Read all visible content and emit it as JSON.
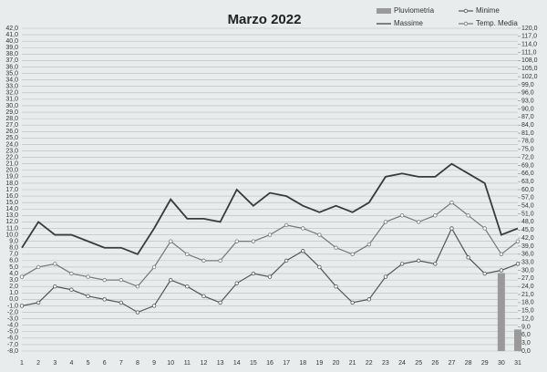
{
  "chart_data": {
    "type": "combo",
    "title": "Marzo 2022",
    "categories": [
      "1",
      "2",
      "3",
      "4",
      "5",
      "6",
      "7",
      "8",
      "9",
      "10",
      "11",
      "12",
      "13",
      "14",
      "15",
      "16",
      "17",
      "18",
      "19",
      "20",
      "21",
      "22",
      "23",
      "24",
      "25",
      "26",
      "27",
      "28",
      "29",
      "30",
      "31"
    ],
    "series": [
      {
        "name": "Pluviometria",
        "type": "bar",
        "axis": "y2",
        "color": "#9a9a9a",
        "values": [
          0,
          0,
          0,
          0,
          0,
          0,
          0,
          0,
          0,
          0,
          0,
          0,
          0,
          0,
          0,
          0,
          0,
          0,
          0,
          0,
          0,
          0,
          0,
          0,
          0,
          0,
          0,
          0,
          0,
          29,
          8
        ]
      },
      {
        "name": "Minime",
        "type": "line",
        "color": "#555555",
        "marker": true,
        "values": [
          -1,
          -0.5,
          2,
          1.5,
          0.5,
          0,
          -0.5,
          -2,
          -1,
          3,
          2,
          0.5,
          -0.5,
          2.5,
          4,
          3.5,
          6,
          7.5,
          5,
          2,
          -0.5,
          0,
          3.5,
          5.5,
          6,
          5.5,
          11,
          6.5,
          4,
          4.5,
          5.5
        ]
      },
      {
        "name": "Massime",
        "type": "line",
        "color": "#3a3a3a",
        "marker": false,
        "values": [
          8,
          12,
          10,
          10,
          9,
          8,
          8,
          7,
          11,
          15.5,
          12.5,
          12.5,
          12,
          17,
          14.5,
          16.5,
          16,
          14.5,
          13.5,
          14.5,
          13.5,
          15,
          19,
          19.5,
          19,
          19,
          21,
          19.5,
          18,
          10,
          11
        ]
      },
      {
        "name": "Temp. Media",
        "type": "line",
        "color": "#777777",
        "marker": true,
        "values": [
          3.5,
          5,
          5.5,
          4,
          3.5,
          3,
          3,
          2,
          5,
          9,
          7,
          6,
          6,
          9,
          9,
          10,
          11.5,
          11,
          10,
          8,
          7,
          8.5,
          12,
          13,
          12,
          13,
          15,
          13,
          11,
          7,
          9
        ]
      }
    ],
    "ylim": [
      -8,
      42
    ],
    "yticks": [
      {
        "value": -8,
        "label": "-8,0"
      },
      {
        "value": -7,
        "label": "-7,0"
      },
      {
        "value": -6,
        "label": "-6,0"
      },
      {
        "value": -5,
        "label": "-5,0"
      },
      {
        "value": -4,
        "label": "-4,0"
      },
      {
        "value": -3,
        "label": "-3,0"
      },
      {
        "value": -2,
        "label": "-2,0"
      },
      {
        "value": -1,
        "label": "-1,0"
      },
      {
        "value": 0,
        "label": "0,0"
      },
      {
        "value": 1,
        "label": "1,0"
      },
      {
        "value": 2,
        "label": "2,0"
      },
      {
        "value": 3,
        "label": "3,0"
      },
      {
        "value": 4,
        "label": "4,0"
      },
      {
        "value": 5,
        "label": "5,0"
      },
      {
        "value": 6,
        "label": "6,0"
      },
      {
        "value": 7,
        "label": "7,0"
      },
      {
        "value": 8,
        "label": "8,0"
      },
      {
        "value": 9,
        "label": "9,0"
      },
      {
        "value": 10,
        "label": "10,0"
      },
      {
        "value": 11,
        "label": "11,0"
      },
      {
        "value": 12,
        "label": "12,0"
      },
      {
        "value": 13,
        "label": "13,0"
      },
      {
        "value": 14,
        "label": "14,0"
      },
      {
        "value": 15,
        "label": "15,0"
      },
      {
        "value": 16,
        "label": "16,0"
      },
      {
        "value": 17,
        "label": "17,0"
      },
      {
        "value": 18,
        "label": "18,0"
      },
      {
        "value": 19,
        "label": "19,0"
      },
      {
        "value": 20,
        "label": "20,0"
      },
      {
        "value": 21,
        "label": "21,0"
      },
      {
        "value": 22,
        "label": "22,0"
      },
      {
        "value": 23,
        "label": "23,0"
      },
      {
        "value": 24,
        "label": "24,0"
      },
      {
        "value": 25,
        "label": "25,0"
      },
      {
        "value": 26,
        "label": "26,0"
      },
      {
        "value": 27,
        "label": "27,0"
      },
      {
        "value": 28,
        "label": "28,0"
      },
      {
        "value": 29,
        "label": "29,0"
      },
      {
        "value": 30,
        "label": "30,0"
      },
      {
        "value": 31,
        "label": "31,0"
      },
      {
        "value": 32,
        "label": "32,0"
      },
      {
        "value": 33,
        "label": "33,0"
      },
      {
        "value": 34,
        "label": "34,0"
      },
      {
        "value": 35,
        "label": "35,0"
      },
      {
        "value": 36,
        "label": "36,0"
      },
      {
        "value": 37,
        "label": "37,0"
      },
      {
        "value": 38,
        "label": "38,0"
      },
      {
        "value": 39,
        "label": "39,0"
      },
      {
        "value": 40,
        "label": "40,0"
      },
      {
        "value": 41,
        "label": "41,0"
      },
      {
        "value": 42,
        "label": "42,0"
      }
    ],
    "y2lim": [
      0,
      120
    ],
    "y2ticks": [
      {
        "value": 0,
        "label": "0,0"
      },
      {
        "value": 3,
        "label": "3,0"
      },
      {
        "value": 6,
        "label": "6,0"
      },
      {
        "value": 9,
        "label": "9,0"
      },
      {
        "value": 12,
        "label": "12,0"
      },
      {
        "value": 15,
        "label": "15,0"
      },
      {
        "value": 18,
        "label": "18,0"
      },
      {
        "value": 21,
        "label": "21,0"
      },
      {
        "value": 24,
        "label": "24,0"
      },
      {
        "value": 27,
        "label": "27,0"
      },
      {
        "value": 30,
        "label": "30,0"
      },
      {
        "value": 33,
        "label": "33,0"
      },
      {
        "value": 36,
        "label": "36,0"
      },
      {
        "value": 39,
        "label": "39,0"
      },
      {
        "value": 42,
        "label": "42,0"
      },
      {
        "value": 45,
        "label": "45,0"
      },
      {
        "value": 48,
        "label": "48,0"
      },
      {
        "value": 51,
        "label": "51,0"
      },
      {
        "value": 54,
        "label": "54,0"
      },
      {
        "value": 57,
        "label": "57,0"
      },
      {
        "value": 60,
        "label": "60,0"
      },
      {
        "value": 63,
        "label": "63,0"
      },
      {
        "value": 66,
        "label": "66,0"
      },
      {
        "value": 69,
        "label": "69,0"
      },
      {
        "value": 72,
        "label": "72,0"
      },
      {
        "value": 75,
        "label": "75,0"
      },
      {
        "value": 78,
        "label": "78,0"
      },
      {
        "value": 81,
        "label": "81,0"
      },
      {
        "value": 84,
        "label": "84,0"
      },
      {
        "value": 87,
        "label": "87,0"
      },
      {
        "value": 90,
        "label": "90,0"
      },
      {
        "value": 93,
        "label": "93,0"
      },
      {
        "value": 96,
        "label": "96,0"
      },
      {
        "value": 99,
        "label": "99,0"
      },
      {
        "value": 102,
        "label": "102,0"
      },
      {
        "value": 105,
        "label": "105,0"
      },
      {
        "value": 108,
        "label": "108,0"
      },
      {
        "value": 111,
        "label": "111,0"
      },
      {
        "value": 114,
        "label": "114,0"
      },
      {
        "value": 117,
        "label": "117,0"
      },
      {
        "value": 120,
        "label": "120,0"
      }
    ],
    "grid": true
  }
}
